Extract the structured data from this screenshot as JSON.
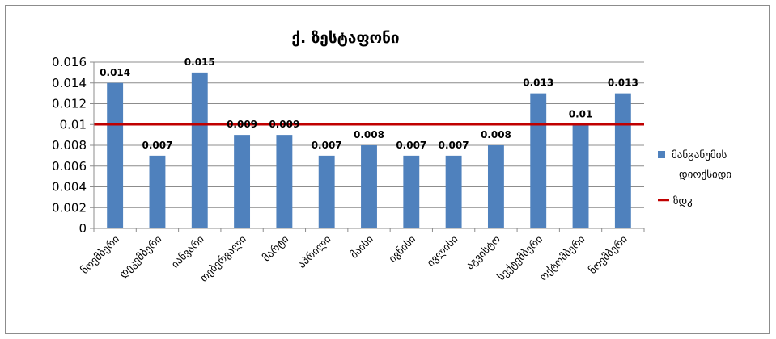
{
  "chart_data": {
    "type": "bar",
    "title": "ქ. ზესტაფონი",
    "categories": [
      "ნოემბერი",
      "დეკემბერი",
      "იანვარი",
      "თებერვალი",
      "მარტი",
      "აპრილი",
      "მაისი",
      "ივნისი",
      "ივლისი",
      "აგვისტო",
      "სექტემბერი",
      "ოქტომბერი",
      "ნოემბერი"
    ],
    "series": [
      {
        "name": "მანგანუმის დიოქსიდი",
        "values": [
          0.014,
          0.007,
          0.015,
          0.009,
          0.009,
          0.007,
          0.008,
          0.007,
          0.007,
          0.008,
          0.013,
          0.01,
          0.013
        ],
        "data_labels": [
          "0.014",
          "0.007",
          "0.015",
          "0.009",
          "0.009",
          "0.007",
          "0.008",
          "0.007",
          "0.007",
          "0.008",
          "0.013",
          "0.01",
          "0.013"
        ],
        "color": "#4f81bd"
      }
    ],
    "reference_line": {
      "name": "ზდკ",
      "value": 0.01,
      "color": "#c00000"
    },
    "legend_label_lines": [
      "მანგანუმის",
      "დიოქსიდი"
    ],
    "yticks": [
      "0",
      "0.002",
      "0.004",
      "0.006",
      "0.008",
      "0.01",
      "0.012",
      "0.014",
      "0.016"
    ],
    "ylim": [
      0,
      0.016
    ],
    "grid": true,
    "legend_position": "right"
  }
}
